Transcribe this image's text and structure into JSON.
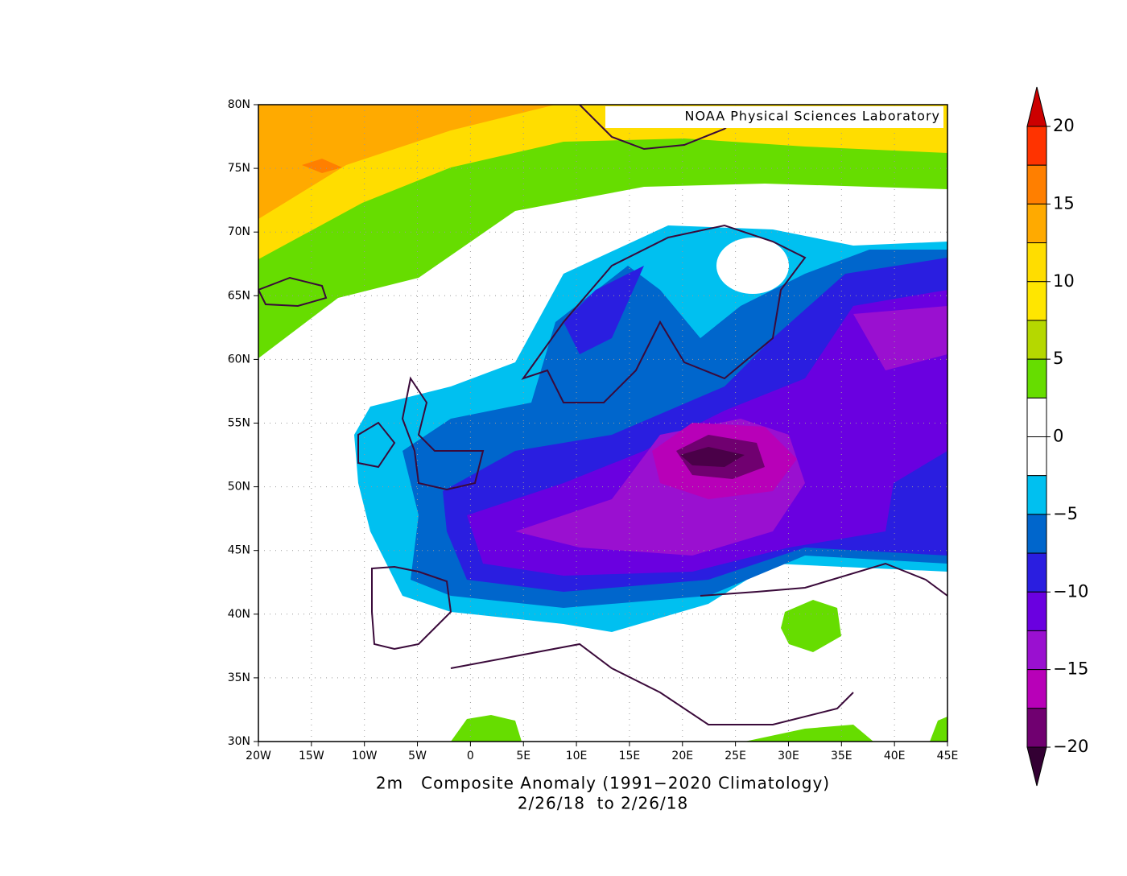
{
  "map": {
    "credit": "NOAA Physical Sciences Laboratory",
    "lat_labels": [
      "80N",
      "75N",
      "70N",
      "65N",
      "60N",
      "55N",
      "50N",
      "45N",
      "40N",
      "35N",
      "30N"
    ],
    "lon_labels": [
      "20W",
      "15W",
      "10W",
      "5W",
      "0",
      "5E",
      "10E",
      "15E",
      "20E",
      "25E",
      "30E",
      "35E",
      "40E",
      "45E"
    ],
    "caption": [
      "2m   Composite Anomaly (1991−2020 Climatology)",
      "2/26/18  to 2/26/18"
    ]
  },
  "colorbar": {
    "labels": [
      "20",
      "15",
      "10",
      "5",
      "0",
      "−5",
      "−10",
      "−15",
      "−20"
    ],
    "colors": [
      "#ff3300",
      "#ff7f00",
      "#ffaa00",
      "#ffdd00",
      "#ffe600",
      "#b5d800",
      "#66dd00",
      "#ffffff",
      "#ffffff",
      "#00c0f0",
      "#0066cc",
      "#2a1ee0",
      "#6a00e0",
      "#9a10d0",
      "#b800b8",
      "#700070"
    ],
    "top_color": "#cc0000",
    "bottom_color": "#330033"
  }
}
